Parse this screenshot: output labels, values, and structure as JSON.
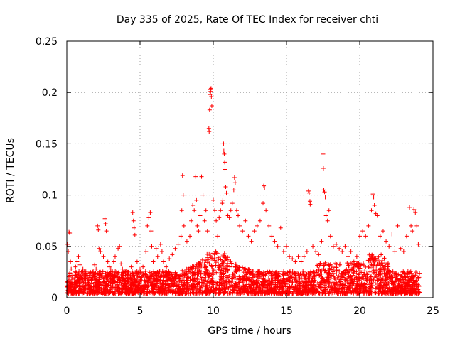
{
  "chart_data": {
    "type": "scatter",
    "title": "Day 335 of 2025, Rate Of TEC Index for receiver chti",
    "xlabel": "GPS time / hours",
    "ylabel": "ROTI / TECUs",
    "xlim": [
      0,
      25
    ],
    "ylim": [
      0,
      0.25
    ],
    "xticks": [
      "0",
      "5",
      "10",
      "15",
      "20",
      "25"
    ],
    "xtick_values": [
      0,
      5,
      10,
      15,
      20,
      25
    ],
    "yticks": [
      "0",
      "0.05",
      "0.1",
      "0.15",
      "0.2",
      "0.25"
    ],
    "ytick_values": [
      0,
      0.05,
      0.1,
      0.15,
      0.2,
      0.25
    ],
    "grid": true,
    "marker": "+",
    "marker_color": "#ff0000",
    "series": [
      {
        "name": "ROTI",
        "points": [
          [
            0.05,
            0.052
          ],
          [
            0.1,
            0.045
          ],
          [
            0.15,
            0.064
          ],
          [
            0.2,
            0.063
          ],
          [
            0.25,
            0.035
          ],
          [
            0.3,
            0.028
          ],
          [
            0.4,
            0.022
          ],
          [
            0.5,
            0.018
          ],
          [
            0.6,
            0.03
          ],
          [
            0.7,
            0.035
          ],
          [
            0.8,
            0.04
          ],
          [
            0.9,
            0.032
          ],
          [
            1.0,
            0.025
          ],
          [
            1.1,
            0.028
          ],
          [
            1.2,
            0.022
          ],
          [
            1.4,
            0.02
          ],
          [
            1.6,
            0.024
          ],
          [
            1.8,
            0.026
          ],
          [
            1.9,
            0.032
          ],
          [
            2.0,
            0.028
          ],
          [
            2.1,
            0.07
          ],
          [
            2.15,
            0.066
          ],
          [
            2.2,
            0.048
          ],
          [
            2.3,
            0.045
          ],
          [
            2.5,
            0.04
          ],
          [
            2.6,
            0.077
          ],
          [
            2.65,
            0.072
          ],
          [
            2.7,
            0.065
          ],
          [
            2.8,
            0.035
          ],
          [
            2.9,
            0.03
          ],
          [
            3.0,
            0.028
          ],
          [
            3.2,
            0.035
          ],
          [
            3.3,
            0.04
          ],
          [
            3.4,
            0.025
          ],
          [
            3.5,
            0.048
          ],
          [
            3.6,
            0.05
          ],
          [
            3.7,
            0.033
          ],
          [
            3.8,
            0.028
          ],
          [
            4.0,
            0.022
          ],
          [
            4.2,
            0.025
          ],
          [
            4.4,
            0.03
          ],
          [
            4.5,
            0.083
          ],
          [
            4.55,
            0.075
          ],
          [
            4.6,
            0.068
          ],
          [
            4.65,
            0.061
          ],
          [
            4.8,
            0.035
          ],
          [
            5.0,
            0.028
          ],
          [
            5.2,
            0.03
          ],
          [
            5.4,
            0.045
          ],
          [
            5.5,
            0.07
          ],
          [
            5.6,
            0.078
          ],
          [
            5.7,
            0.083
          ],
          [
            5.75,
            0.065
          ],
          [
            5.8,
            0.05
          ],
          [
            5.9,
            0.035
          ],
          [
            6.1,
            0.048
          ],
          [
            6.2,
            0.04
          ],
          [
            6.4,
            0.052
          ],
          [
            6.5,
            0.045
          ],
          [
            6.6,
            0.035
          ],
          [
            6.8,
            0.03
          ],
          [
            7.0,
            0.038
          ],
          [
            7.2,
            0.042
          ],
          [
            7.4,
            0.048
          ],
          [
            7.6,
            0.052
          ],
          [
            7.8,
            0.06
          ],
          [
            7.85,
            0.085
          ],
          [
            7.9,
            0.119
          ],
          [
            7.95,
            0.1
          ],
          [
            8.0,
            0.07
          ],
          [
            8.2,
            0.055
          ],
          [
            8.4,
            0.06
          ],
          [
            8.5,
            0.075
          ],
          [
            8.6,
            0.09
          ],
          [
            8.7,
            0.085
          ],
          [
            8.8,
            0.118
          ],
          [
            8.85,
            0.095
          ],
          [
            8.9,
            0.07
          ],
          [
            9.0,
            0.065
          ],
          [
            9.1,
            0.08
          ],
          [
            9.2,
            0.118
          ],
          [
            9.3,
            0.1
          ],
          [
            9.4,
            0.075
          ],
          [
            9.5,
            0.085
          ],
          [
            9.6,
            0.065
          ],
          [
            9.7,
            0.165
          ],
          [
            9.72,
            0.162
          ],
          [
            9.75,
            0.183
          ],
          [
            9.78,
            0.198
          ],
          [
            9.8,
            0.203
          ],
          [
            9.82,
            0.201
          ],
          [
            9.85,
            0.204
          ],
          [
            9.87,
            0.196
          ],
          [
            9.9,
            0.187
          ],
          [
            10.0,
            0.095
          ],
          [
            10.1,
            0.085
          ],
          [
            10.2,
            0.075
          ],
          [
            10.3,
            0.06
          ],
          [
            10.4,
            0.078
          ],
          [
            10.5,
            0.085
          ],
          [
            10.6,
            0.092
          ],
          [
            10.65,
            0.095
          ],
          [
            10.7,
            0.15
          ],
          [
            10.72,
            0.143
          ],
          [
            10.75,
            0.14
          ],
          [
            10.78,
            0.132
          ],
          [
            10.8,
            0.125
          ],
          [
            10.85,
            0.108
          ],
          [
            10.9,
            0.102
          ],
          [
            11.0,
            0.08
          ],
          [
            11.1,
            0.078
          ],
          [
            11.2,
            0.085
          ],
          [
            11.3,
            0.092
          ],
          [
            11.4,
            0.105
          ],
          [
            11.45,
            0.117
          ],
          [
            11.5,
            0.112
          ],
          [
            11.6,
            0.085
          ],
          [
            11.7,
            0.08
          ],
          [
            11.8,
            0.07
          ],
          [
            12.0,
            0.065
          ],
          [
            12.2,
            0.075
          ],
          [
            12.4,
            0.06
          ],
          [
            12.6,
            0.055
          ],
          [
            12.8,
            0.065
          ],
          [
            13.0,
            0.07
          ],
          [
            13.2,
            0.075
          ],
          [
            13.4,
            0.092
          ],
          [
            13.45,
            0.109
          ],
          [
            13.5,
            0.107
          ],
          [
            13.6,
            0.085
          ],
          [
            13.8,
            0.07
          ],
          [
            14.0,
            0.06
          ],
          [
            14.2,
            0.055
          ],
          [
            14.4,
            0.05
          ],
          [
            14.6,
            0.068
          ],
          [
            14.8,
            0.045
          ],
          [
            15.0,
            0.05
          ],
          [
            15.2,
            0.04
          ],
          [
            15.4,
            0.038
          ],
          [
            15.6,
            0.035
          ],
          [
            15.8,
            0.04
          ],
          [
            16.0,
            0.035
          ],
          [
            16.2,
            0.04
          ],
          [
            16.4,
            0.045
          ],
          [
            16.5,
            0.104
          ],
          [
            16.55,
            0.102
          ],
          [
            16.6,
            0.094
          ],
          [
            16.62,
            0.091
          ],
          [
            16.8,
            0.05
          ],
          [
            17.0,
            0.045
          ],
          [
            17.2,
            0.042
          ],
          [
            17.4,
            0.055
          ],
          [
            17.5,
            0.14
          ],
          [
            17.52,
            0.126
          ],
          [
            17.55,
            0.105
          ],
          [
            17.6,
            0.103
          ],
          [
            17.65,
            0.098
          ],
          [
            17.7,
            0.08
          ],
          [
            17.8,
            0.075
          ],
          [
            17.9,
            0.085
          ],
          [
            18.0,
            0.06
          ],
          [
            18.2,
            0.05
          ],
          [
            18.4,
            0.052
          ],
          [
            18.6,
            0.048
          ],
          [
            18.8,
            0.045
          ],
          [
            19.0,
            0.05
          ],
          [
            19.2,
            0.04
          ],
          [
            19.4,
            0.045
          ],
          [
            19.6,
            0.035
          ],
          [
            19.8,
            0.04
          ],
          [
            20.0,
            0.06
          ],
          [
            20.2,
            0.065
          ],
          [
            20.4,
            0.06
          ],
          [
            20.6,
            0.07
          ],
          [
            20.8,
            0.085
          ],
          [
            20.9,
            0.101
          ],
          [
            20.95,
            0.098
          ],
          [
            21.0,
            0.09
          ],
          [
            21.1,
            0.082
          ],
          [
            21.2,
            0.08
          ],
          [
            21.4,
            0.06
          ],
          [
            21.6,
            0.065
          ],
          [
            21.8,
            0.055
          ],
          [
            22.0,
            0.05
          ],
          [
            22.2,
            0.062
          ],
          [
            22.4,
            0.045
          ],
          [
            22.6,
            0.07
          ],
          [
            22.8,
            0.048
          ],
          [
            23.0,
            0.045
          ],
          [
            23.2,
            0.06
          ],
          [
            23.4,
            0.088
          ],
          [
            23.5,
            0.07
          ],
          [
            23.6,
            0.065
          ],
          [
            23.7,
            0.086
          ],
          [
            23.8,
            0.083
          ],
          [
            23.9,
            0.07
          ],
          [
            24.0,
            0.052
          ]
        ]
      }
    ]
  }
}
